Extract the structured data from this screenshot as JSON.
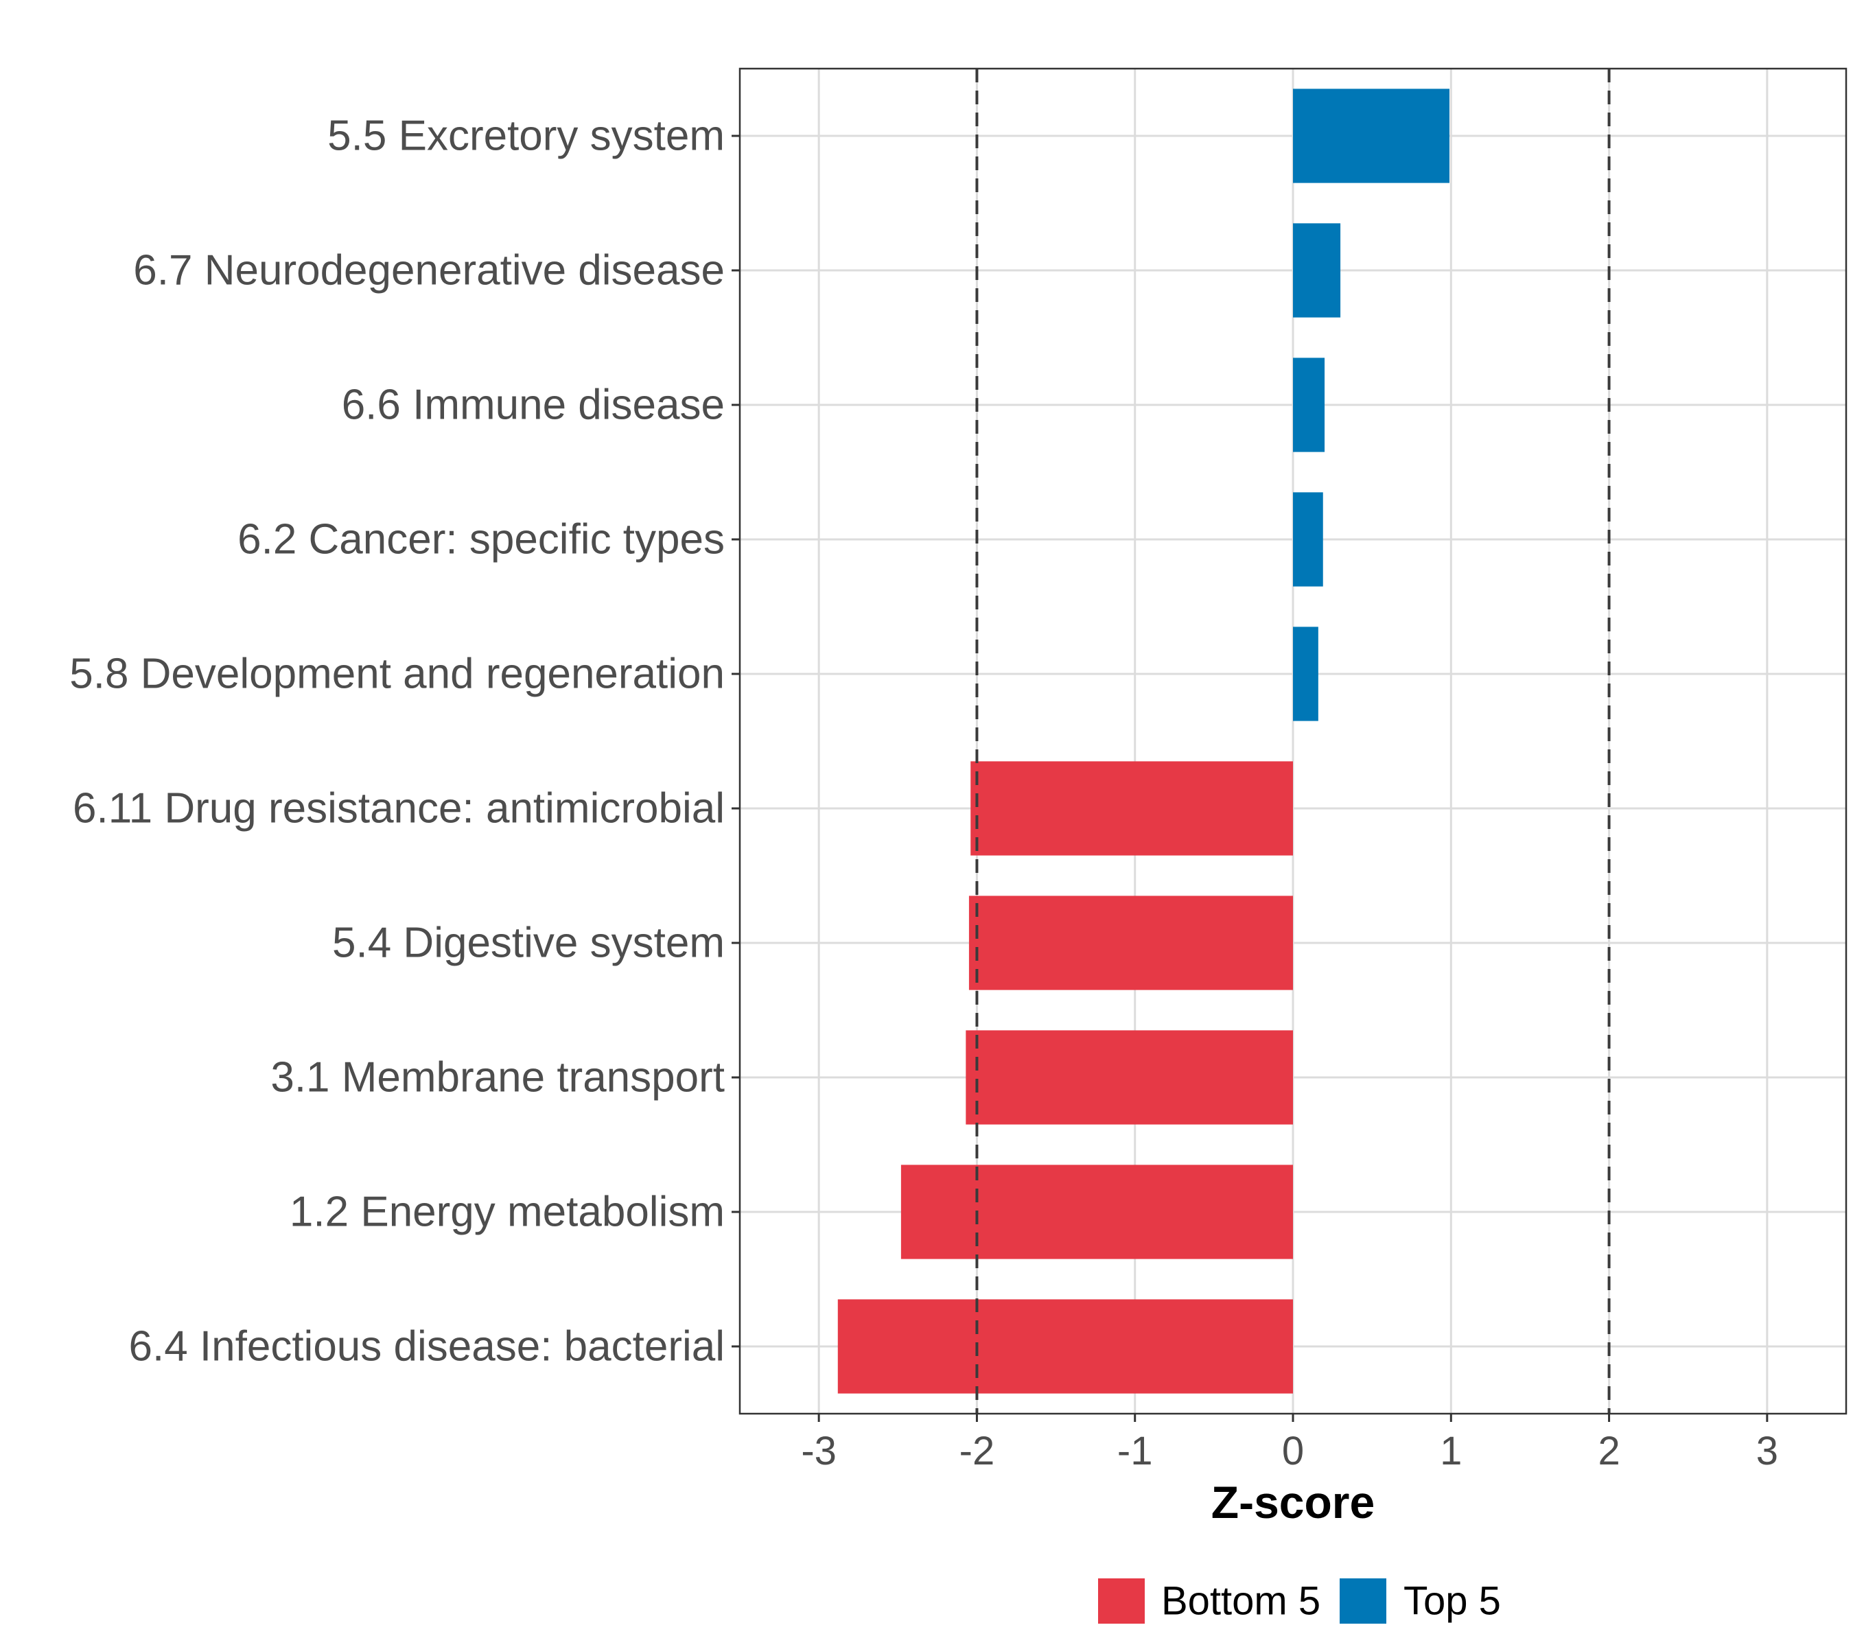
{
  "chart_data": {
    "type": "bar",
    "orientation": "horizontal",
    "title": "",
    "xlabel": "Z-score",
    "ylabel": "",
    "xlim": [
      -3.5,
      3.5
    ],
    "x_ticks": [
      -3,
      -2,
      -1,
      0,
      1,
      2,
      3
    ],
    "x_tick_labels": [
      "-3",
      "-2",
      "-1",
      "0",
      "1",
      "2",
      "3"
    ],
    "grid": true,
    "reference_lines": [
      -2,
      2
    ],
    "legend_position": "bottom",
    "colors": {
      "Bottom 5": "#e63946",
      "Top 5": "#0077b6"
    },
    "series": [
      {
        "name": "Bottom 5",
        "color": "#e63946"
      },
      {
        "name": "Top 5",
        "color": "#0077b6"
      }
    ],
    "bars": [
      {
        "category": "5.5 Excretory system",
        "value": 0.99,
        "group": "Top 5"
      },
      {
        "category": "6.7 Neurodegenerative disease",
        "value": 0.3,
        "group": "Top 5"
      },
      {
        "category": "6.6 Immune disease",
        "value": 0.2,
        "group": "Top 5"
      },
      {
        "category": "6.2 Cancer: specific types",
        "value": 0.19,
        "group": "Top 5"
      },
      {
        "category": "5.8 Development and regeneration",
        "value": 0.16,
        "group": "Top 5"
      },
      {
        "category": "6.11 Drug resistance: antimicrobial",
        "value": -2.04,
        "group": "Bottom 5"
      },
      {
        "category": "5.4 Digestive system",
        "value": -2.05,
        "group": "Bottom 5"
      },
      {
        "category": "3.1 Membrane transport",
        "value": -2.07,
        "group": "Bottom 5"
      },
      {
        "category": "1.2 Energy metabolism",
        "value": -2.48,
        "group": "Bottom 5"
      },
      {
        "category": "6.4 Infectious disease: bacterial",
        "value": -2.88,
        "group": "Bottom 5"
      }
    ]
  }
}
